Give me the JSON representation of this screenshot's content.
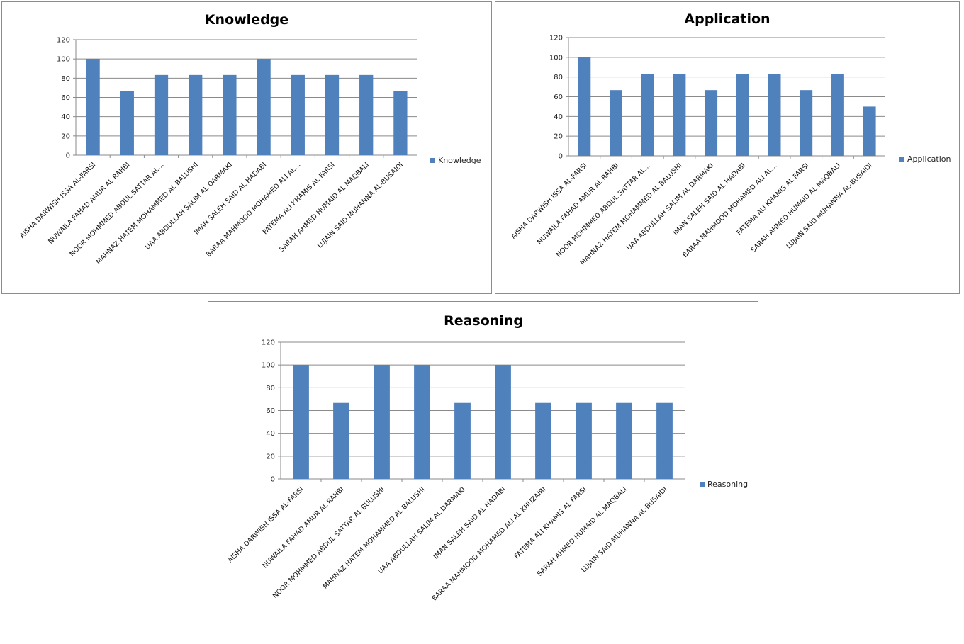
{
  "chart_data": [
    {
      "type": "bar",
      "title": "Knowledge",
      "series": [
        {
          "name": "Knowledge",
          "color": "#4F81BD",
          "values": [
            100,
            66.7,
            83.3,
            83.3,
            83.3,
            100,
            83.3,
            83.3,
            83.3,
            66.7
          ]
        }
      ],
      "categories": [
        "AISHA DARWISH ISSA AL-FARSI",
        "NUWAILA FAHAD AMUR AL RAHBI",
        "NOOR MOHMMED ABDUL SATTAR  AL…",
        "MAHNAZ HATEM MOHAMMED AL BALUSHI",
        "UAA ABDULLAH SALIM AL DARMAKI",
        "IMAN SALEH SAID AL HADABI",
        "BARAA MAHMOOD MOHAMED ALI AL…",
        "FATEMA ALI KHAMIS AL FARSI",
        "SARAH AHMED HUMAID AL MAQBALI",
        "LUJAIN SAID MUHANNA AL-BUSAIDI"
      ],
      "yticks": [
        0,
        20,
        40,
        60,
        80,
        100,
        120
      ],
      "ylim": [
        0,
        120
      ],
      "grid": true,
      "legend": "right",
      "xlabel": "",
      "ylabel": ""
    },
    {
      "type": "bar",
      "title": "Application",
      "series": [
        {
          "name": "Application",
          "color": "#4F81BD",
          "values": [
            100,
            66.7,
            83.3,
            83.3,
            66.7,
            83.3,
            83.3,
            66.7,
            83.3,
            50
          ]
        }
      ],
      "categories": [
        "AISHA DARWISH ISSA AL-FARSI",
        "NUWAILA FAHAD AMUR AL RAHBI",
        "NOOR MOHMMED ABDUL SATTAR  AL…",
        "MAHNAZ HATEM MOHAMMED AL BALUSHI",
        "UAA ABDULLAH SALIM AL DARMAKI",
        "IMAN SALEH SAID AL HADABI",
        "BARAA MAHMOOD MOHAMED ALI AL…",
        "FATEMA ALI KHAMIS AL FARSI",
        "SARAH AHMED HUMAID AL MAQBALI",
        "LUJAIN SAID MUHANNA AL-BUSAIDI"
      ],
      "yticks": [
        0,
        20,
        40,
        60,
        80,
        100,
        120
      ],
      "ylim": [
        0,
        120
      ],
      "grid": true,
      "legend": "right",
      "xlabel": "",
      "ylabel": ""
    },
    {
      "type": "bar",
      "title": "Reasoning",
      "series": [
        {
          "name": "Reasoning",
          "color": "#4F81BD",
          "values": [
            100,
            66.7,
            100,
            100,
            66.7,
            100,
            66.7,
            66.7,
            66.7,
            66.7
          ]
        }
      ],
      "categories": [
        "AISHA DARWISH ISSA AL-FARSI",
        "NUWAILA FAHAD AMUR AL RAHBI",
        "NOOR MOHMMED  ABDUL SATTAR  AL BULUSHI",
        "MAHNAZ HATEM MOHAMMED  AL BALUSHI",
        "UAA ABDULLAH SALIM AL DARMAKI",
        "IMAN SALEH SAID AL HADABI",
        "BARAA MAHMOOD MOHAMED  ALI AL KHUZAIRI",
        "FATEMA ALI KHAMIS AL FARSI",
        "SARAH AHMED HUMAID  AL MAQBALI",
        "LUJAIN SAID MUHANNA  AL-BUSAIDI"
      ],
      "yticks": [
        0,
        20,
        40,
        60,
        80,
        100,
        120
      ],
      "ylim": [
        0,
        120
      ],
      "grid": true,
      "legend": "right",
      "xlabel": "",
      "ylabel": ""
    }
  ]
}
